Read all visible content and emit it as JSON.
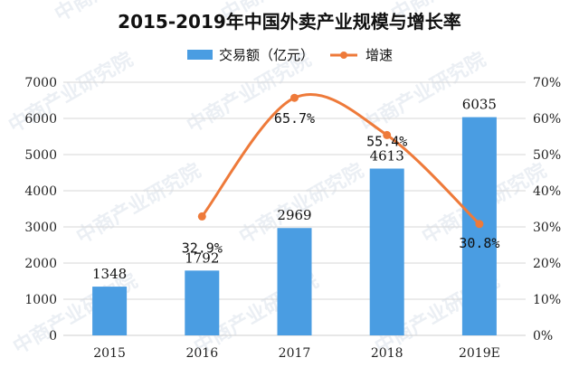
{
  "chart_data": {
    "type": "bar+line",
    "title": "2015-2019年中国外卖产业规模与增长率",
    "categories": [
      "2015",
      "2016",
      "2017",
      "2018",
      "2019E"
    ],
    "series": [
      {
        "name": "交易额（亿元）",
        "type": "bar",
        "axis": "left",
        "values": [
          1348,
          1792,
          2969,
          4613,
          6035
        ],
        "labels": [
          "1348",
          "1792",
          "2969",
          "4613",
          "6035"
        ],
        "color": "#4a9de2"
      },
      {
        "name": "增速",
        "type": "line",
        "axis": "right",
        "values": [
          null,
          32.9,
          65.7,
          55.4,
          30.8
        ],
        "labels": [
          "",
          "32.9%",
          "65.7%",
          "55.4%",
          "30.8%"
        ],
        "color": "#ee7a3a"
      }
    ],
    "y_left": {
      "min": 0,
      "max": 7000,
      "step": 1000,
      "ticks": [
        "0",
        "1000",
        "2000",
        "3000",
        "4000",
        "5000",
        "6000",
        "7000"
      ]
    },
    "y_right": {
      "min": 0,
      "max": 70,
      "step": 10,
      "ticks": [
        "0%",
        "10%",
        "20%",
        "30%",
        "40%",
        "50%",
        "60%",
        "70%"
      ]
    },
    "grid": true,
    "legend": "top-center"
  },
  "legend": {
    "bar": "交易额（亿元）",
    "line": "增速"
  },
  "watermark": {
    "text": "中商产业研究院"
  }
}
